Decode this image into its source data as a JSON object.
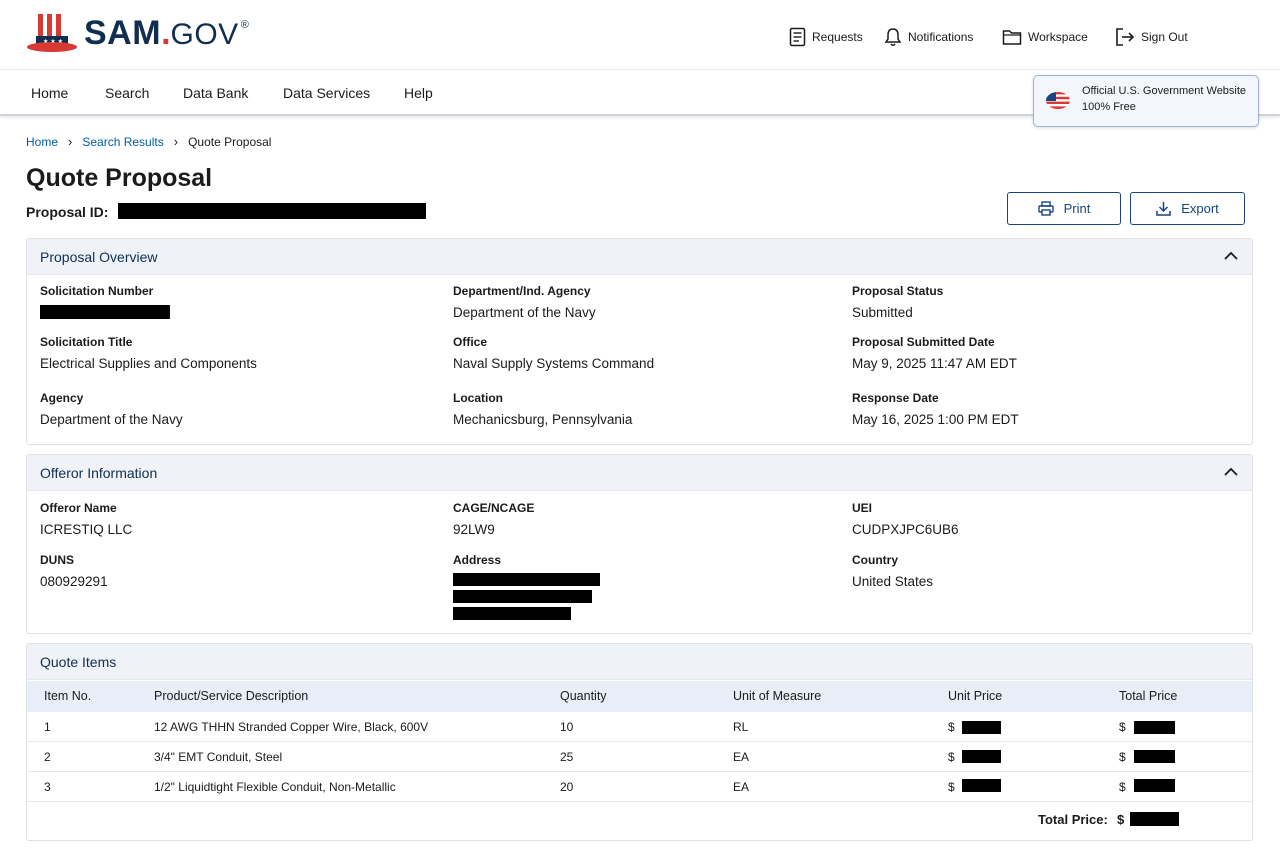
{
  "header": {
    "logo": {
      "sam": "SAM",
      "dot": ".",
      "gov": "GOV",
      "reg": "®"
    },
    "utility": {
      "requests": "Requests",
      "notifications": "Notifications",
      "workspace": "Workspace",
      "sign_out": "Sign Out"
    },
    "nav": [
      "Home",
      "Search",
      "Data Bank",
      "Data Services",
      "Help"
    ],
    "official_banner": {
      "line1": "Official U.S. Government Website",
      "line2": "100% Free"
    }
  },
  "breadcrumb": [
    "Home",
    "Search Results",
    "Quote Proposal"
  ],
  "page": {
    "title": "Quote Proposal",
    "proposal_id_label": "Proposal ID:",
    "print_label": "Print",
    "export_label": "Export"
  },
  "overview": {
    "title": "Proposal Overview",
    "solicitation_number_label": "Solicitation Number",
    "department_label": "Department/Ind. Agency",
    "department_value": "Department of the Navy",
    "status_label": "Proposal Status",
    "status_value": "Submitted",
    "solicitation_title_label": "Solicitation Title",
    "solicitation_title_value": "Electrical Supplies and Components",
    "office_label": "Office",
    "office_value": "Naval Supply Systems Command",
    "submitted_date_label": "Proposal Submitted Date",
    "submitted_date_value": "May 9, 2025 11:47 AM EDT",
    "agency_label": "Agency",
    "agency_value": "Department of the Navy",
    "location_label": "Location",
    "location_value": "Mechanicsburg, Pennsylvania",
    "response_date_label": "Response Date",
    "response_date_value": "May 16, 2025 1:00 PM EDT"
  },
  "offeror": {
    "title": "Offeror Information",
    "name_label": "Offeror Name",
    "name_value": "ICRESTIQ LLC",
    "cage_label": "CAGE/NCAGE",
    "cage_value": "92LW9",
    "uei_label": "UEI",
    "uei_value": "CUDPXJPC6UB6",
    "duns_label": "DUNS",
    "duns_value": "080929291",
    "address_label": "Address",
    "country_label": "Country",
    "country_value": "United States"
  },
  "quote_items": {
    "title": "Quote Items",
    "columns": [
      "Item No.",
      "Product/Service Description",
      "Quantity",
      "Unit of Measure",
      "Unit Price",
      "Total Price"
    ],
    "rows": [
      {
        "item": "1",
        "desc": "12 AWG THHN Stranded Copper Wire, Black, 600V",
        "qty": "10",
        "uom": "RL",
        "currency": "$"
      },
      {
        "item": "2",
        "desc": "3/4\" EMT Conduit, Steel",
        "qty": "25",
        "uom": "EA",
        "currency": "$"
      },
      {
        "item": "3",
        "desc": "1/2\" Liquidtight Flexible Conduit, Non-Metallic",
        "qty": "20",
        "uom": "EA",
        "currency": "$"
      }
    ],
    "total_label": "Total Price:",
    "total_currency": "$"
  }
}
